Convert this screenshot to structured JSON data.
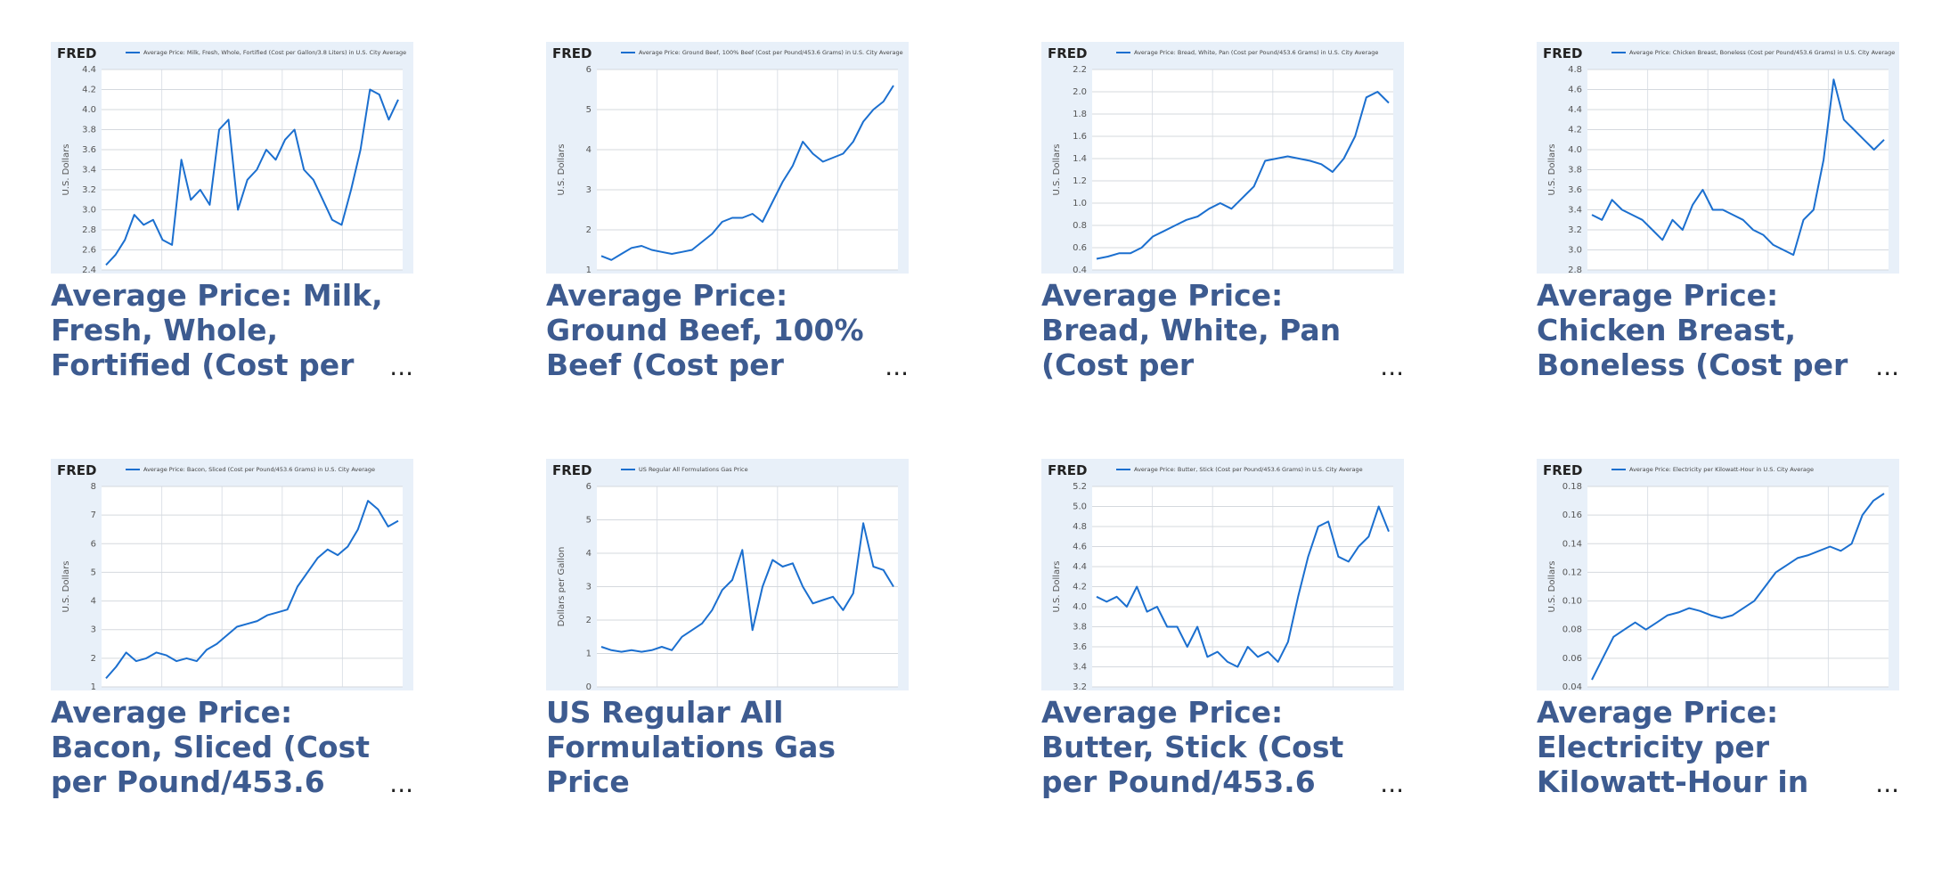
{
  "logo": "FRED",
  "cards": [
    {
      "caption_lines": [
        "Average Price: Milk,",
        "Fresh, Whole,",
        "Fortified (Cost per"
      ],
      "more": "..."
    },
    {
      "caption_lines": [
        "Average Price:",
        "Ground Beef, 100%",
        "Beef (Cost per"
      ],
      "more": "..."
    },
    {
      "caption_lines": [
        "Average Price:",
        "Bread, White, Pan",
        "(Cost per"
      ],
      "more": "..."
    },
    {
      "caption_lines": [
        "Average Price:",
        "Chicken Breast,",
        "Boneless (Cost per"
      ],
      "more": "..."
    },
    {
      "caption_lines": [
        "Average Price:",
        "Bacon, Sliced (Cost",
        "per Pound/453.6"
      ],
      "more": "..."
    },
    {
      "caption_lines": [
        "US Regular All",
        "Formulations Gas",
        "Price"
      ]
    },
    {
      "caption_lines": [
        "Average Price:",
        "Butter, Stick (Cost",
        "per Pound/453.6"
      ],
      "more": "..."
    },
    {
      "caption_lines": [
        "Average Price:",
        "Electricity per",
        "Kilowatt-Hour in"
      ],
      "more": "..."
    }
  ],
  "chart_data": [
    {
      "type": "line",
      "title": "Average Price: Milk, Fresh, Whole, Fortified (Cost per Gallon/3.8 Liters) in U.S. City Average",
      "ylabel": "U.S. Dollars",
      "color": "#1b6fcf",
      "ylim": [
        2.4,
        4.4
      ],
      "yticks": [
        2.4,
        2.6,
        2.8,
        {
          "value": 3,
          "label": "3.0"
        },
        3.2,
        3.4,
        3.6,
        3.8,
        {
          "value": 4,
          "label": "4.0"
        },
        4.2,
        4.4
      ],
      "values": [
        2.45,
        2.55,
        2.7,
        2.95,
        2.85,
        2.9,
        2.7,
        2.65,
        3.5,
        3.1,
        3.2,
        3.05,
        3.8,
        3.9,
        3.0,
        3.3,
        3.4,
        3.6,
        3.5,
        3.7,
        3.8,
        3.4,
        3.3,
        3.1,
        2.9,
        2.85,
        3.2,
        3.6,
        4.2,
        4.15,
        3.9,
        4.1
      ]
    },
    {
      "type": "line",
      "title": "Average Price: Ground Beef, 100% Beef (Cost per Pound/453.6 Grams) in U.S. City Average",
      "ylabel": "U.S. Dollars",
      "color": "#1b6fcf",
      "ylim": [
        1,
        6
      ],
      "yticks": [
        1,
        2,
        3,
        4,
        5,
        6
      ],
      "values": [
        1.35,
        1.25,
        1.4,
        1.55,
        1.6,
        1.5,
        1.45,
        1.4,
        1.45,
        1.5,
        1.7,
        1.9,
        2.2,
        2.3,
        2.3,
        2.4,
        2.2,
        2.7,
        3.2,
        3.6,
        4.2,
        3.9,
        3.7,
        3.8,
        3.9,
        4.2,
        4.7,
        5.0,
        5.2,
        5.6
      ]
    },
    {
      "type": "line",
      "title": "Average Price: Bread, White, Pan (Cost per Pound/453.6 Grams) in U.S. City Average",
      "ylabel": "U.S. Dollars",
      "color": "#1b6fcf",
      "ylim": [
        0.4,
        2.2
      ],
      "yticks": [
        0.4,
        0.6,
        0.8,
        {
          "value": 1,
          "label": "1.0"
        },
        1.2,
        1.4,
        1.6,
        1.8,
        {
          "value": 2,
          "label": "2.0"
        },
        2.2
      ],
      "values": [
        0.5,
        0.52,
        0.55,
        0.55,
        0.6,
        0.7,
        0.75,
        0.8,
        0.85,
        0.88,
        0.95,
        1.0,
        0.95,
        1.05,
        1.15,
        1.38,
        1.4,
        1.42,
        1.4,
        1.38,
        1.35,
        1.28,
        1.4,
        1.6,
        1.95,
        2.0,
        1.9
      ]
    },
    {
      "type": "line",
      "title": "Average Price: Chicken Breast, Boneless (Cost per Pound/453.6 Grams) in U.S. City Average",
      "ylabel": "U.S. Dollars",
      "color": "#1b6fcf",
      "ylim": [
        2.8,
        4.8
      ],
      "yticks": [
        2.8,
        {
          "value": 3,
          "label": "3.0"
        },
        3.2,
        3.4,
        3.6,
        3.8,
        {
          "value": 4,
          "label": "4.0"
        },
        4.2,
        4.4,
        4.6,
        4.8
      ],
      "values": [
        3.35,
        3.3,
        3.5,
        3.4,
        3.35,
        3.3,
        3.2,
        3.1,
        3.3,
        3.2,
        3.45,
        3.6,
        3.4,
        3.4,
        3.35,
        3.3,
        3.2,
        3.15,
        3.05,
        3.0,
        2.95,
        3.3,
        3.4,
        3.9,
        4.7,
        4.3,
        4.2,
        4.1,
        4.0,
        4.1
      ]
    },
    {
      "type": "line",
      "title": "Average Price: Bacon, Sliced (Cost per Pound/453.6 Grams) in U.S. City Average",
      "ylabel": "U.S. Dollars",
      "color": "#1b6fcf",
      "ylim": [
        1,
        8
      ],
      "yticks": [
        1,
        2,
        3,
        4,
        5,
        6,
        7,
        8
      ],
      "values": [
        1.3,
        1.7,
        2.2,
        1.9,
        2.0,
        2.2,
        2.1,
        1.9,
        2.0,
        1.9,
        2.3,
        2.5,
        2.8,
        3.1,
        3.2,
        3.3,
        3.5,
        3.6,
        3.7,
        4.5,
        5.0,
        5.5,
        5.8,
        5.6,
        5.9,
        6.5,
        7.5,
        7.2,
        6.6,
        6.8
      ]
    },
    {
      "type": "line",
      "title": "US Regular All Formulations Gas Price",
      "ylabel": "Dollars per Gallon",
      "color": "#1b6fcf",
      "ylim": [
        0,
        6
      ],
      "yticks": [
        0,
        1,
        2,
        3,
        4,
        5,
        6
      ],
      "values": [
        1.2,
        1.1,
        1.05,
        1.1,
        1.05,
        1.1,
        1.2,
        1.1,
        1.5,
        1.7,
        1.9,
        2.3,
        2.9,
        3.2,
        4.1,
        1.7,
        3.0,
        3.8,
        3.6,
        3.7,
        3.0,
        2.5,
        2.6,
        2.7,
        2.3,
        2.8,
        4.9,
        3.6,
        3.5,
        3.0
      ]
    },
    {
      "type": "line",
      "title": "Average Price: Butter, Stick (Cost per Pound/453.6 Grams) in U.S. City Average",
      "ylabel": "U.S. Dollars",
      "color": "#1b6fcf",
      "ylim": [
        3.2,
        5.2
      ],
      "yticks": [
        3.2,
        3.4,
        3.6,
        3.8,
        {
          "value": 4,
          "label": "4.0"
        },
        4.2,
        4.4,
        4.6,
        4.8,
        {
          "value": 5,
          "label": "5.0"
        },
        5.2
      ],
      "values": [
        4.1,
        4.05,
        4.1,
        4.0,
        4.2,
        3.95,
        4.0,
        3.8,
        3.8,
        3.6,
        3.8,
        3.5,
        3.55,
        3.45,
        3.4,
        3.6,
        3.5,
        3.55,
        3.45,
        3.65,
        4.1,
        4.5,
        4.8,
        4.85,
        4.5,
        4.45,
        4.6,
        4.7,
        5.0,
        4.75
      ]
    },
    {
      "type": "line",
      "title": "Average Price: Electricity per Kilowatt-Hour in U.S. City Average",
      "ylabel": "U.S. Dollars",
      "color": "#1b6fcf",
      "ylim": [
        0.04,
        0.18
      ],
      "yticks": [
        0.04,
        0.06,
        0.08,
        {
          "value": 0.1,
          "label": "0.10"
        },
        0.12,
        0.14,
        0.16,
        0.18
      ],
      "values": [
        0.045,
        0.06,
        0.075,
        0.08,
        0.085,
        0.08,
        0.085,
        0.09,
        0.092,
        0.095,
        0.093,
        0.09,
        0.088,
        0.09,
        0.095,
        0.1,
        0.11,
        0.12,
        0.125,
        0.13,
        0.132,
        0.135,
        0.138,
        0.135,
        0.14,
        0.16,
        0.17,
        0.175
      ]
    }
  ]
}
